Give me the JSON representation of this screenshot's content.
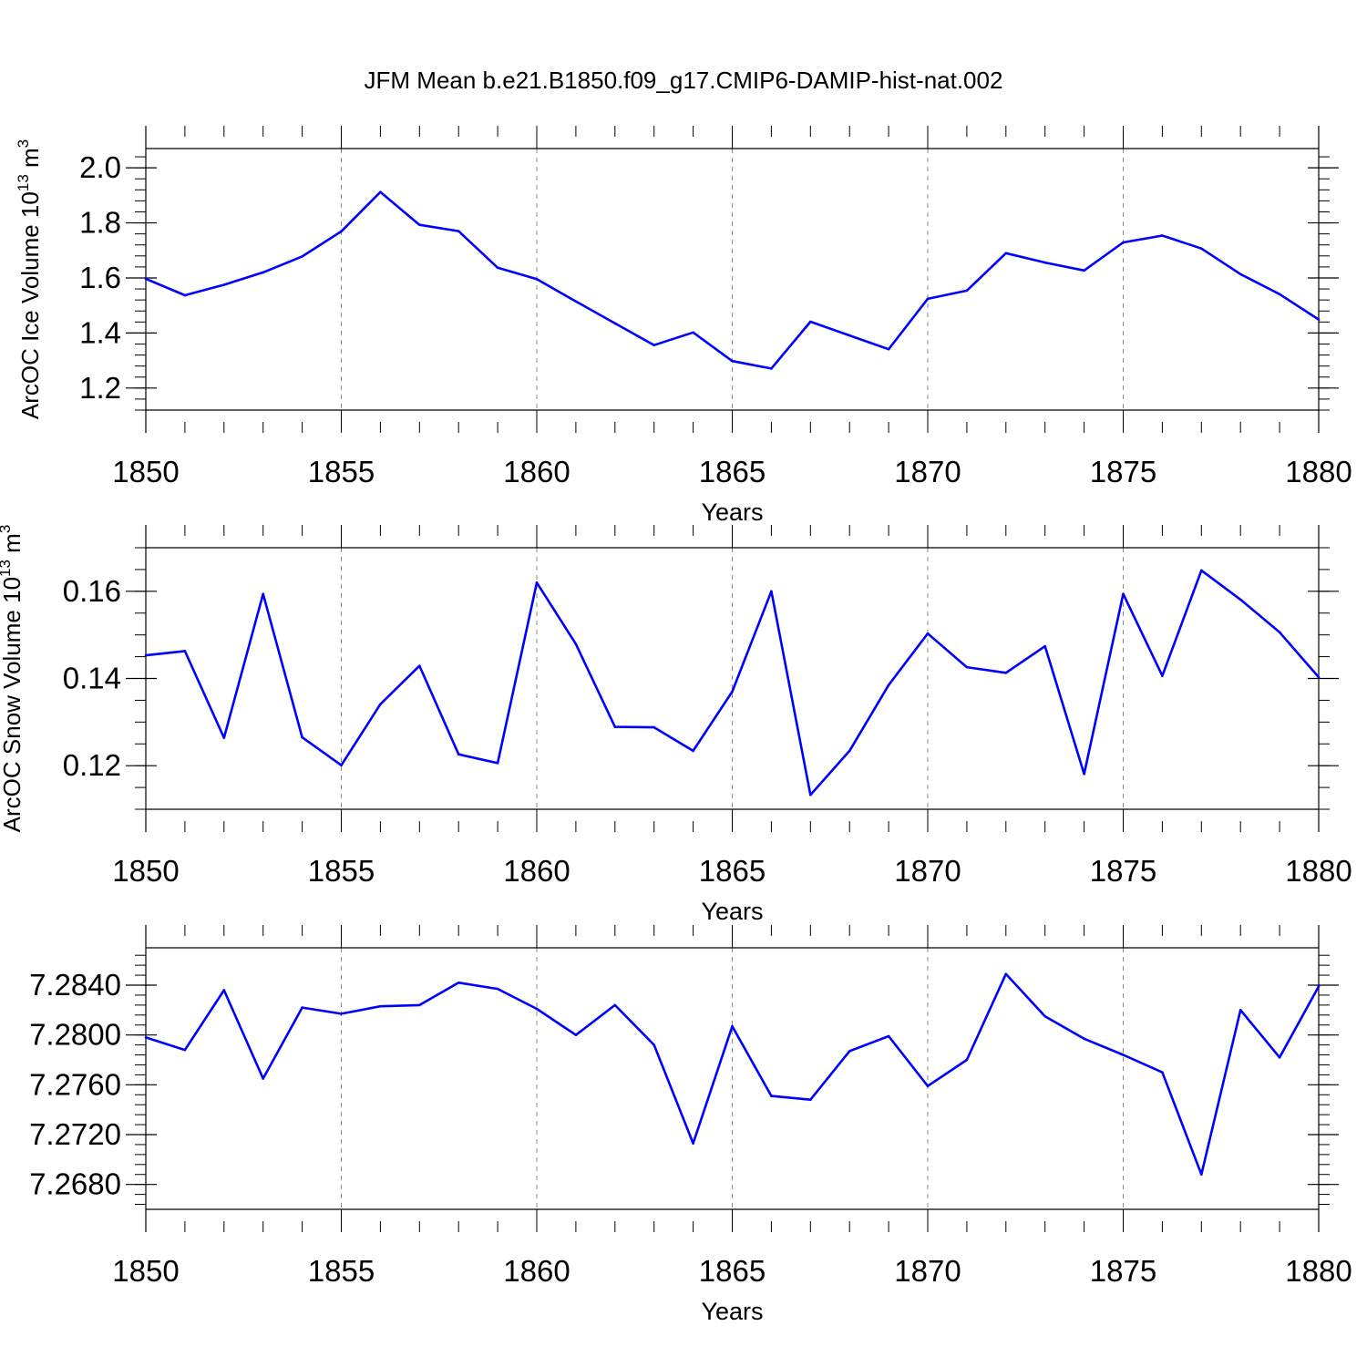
{
  "figure": {
    "title": "JFM Mean b.e21.B1850.f09_g17.CMIP6-DAMIP-hist-nat.002",
    "line_color": "#0000ff",
    "axis_color": "#000000",
    "grid_color": "#888888"
  },
  "chart_data": [
    {
      "type": "line",
      "title": "",
      "xlabel": "Years",
      "ylabel": {
        "main": "ArcOC Ice Volume 10",
        "exp": "13",
        "unit": " m",
        "unit_exp": "3"
      },
      "xlim": [
        1850,
        1880
      ],
      "ylim": [
        1.12,
        2.07
      ],
      "x_major_ticks": [
        1850,
        1855,
        1860,
        1865,
        1870,
        1875,
        1880
      ],
      "x_tick_labels": [
        "1850",
        "1855",
        "1860",
        "1865",
        "1870",
        "1875",
        "1880"
      ],
      "y_major_ticks": [
        1.2,
        1.4,
        1.6,
        1.8,
        2.0
      ],
      "y_tick_labels": [
        "1.2",
        "1.4",
        "1.6",
        "1.8",
        "2.0"
      ],
      "y_minor_step": 0.04,
      "grid": "vertical dashed at major x ticks",
      "x": [
        1850,
        1851,
        1852,
        1853,
        1854,
        1855,
        1856,
        1857,
        1858,
        1859,
        1860,
        1861,
        1862,
        1863,
        1864,
        1865,
        1866,
        1867,
        1868,
        1869,
        1870,
        1871,
        1872,
        1873,
        1874,
        1875,
        1876,
        1877,
        1878,
        1879,
        1880
      ],
      "values": [
        1.597,
        1.537,
        1.575,
        1.62,
        1.678,
        1.769,
        1.912,
        1.793,
        1.77,
        1.637,
        1.596,
        1.515,
        1.435,
        1.356,
        1.402,
        1.298,
        1.271,
        1.441,
        1.391,
        1.341,
        1.524,
        1.554,
        1.69,
        1.656,
        1.627,
        1.729,
        1.754,
        1.707,
        1.614,
        1.541,
        1.449
      ]
    },
    {
      "type": "line",
      "title": "",
      "xlabel": "Years",
      "ylabel": {
        "main": "ArcOC Snow Volume 10",
        "exp": "13",
        "unit": " m",
        "unit_exp": "3"
      },
      "xlim": [
        1850,
        1880
      ],
      "ylim": [
        0.11,
        0.17
      ],
      "x_major_ticks": [
        1850,
        1855,
        1860,
        1865,
        1870,
        1875,
        1880
      ],
      "x_tick_labels": [
        "1850",
        "1855",
        "1860",
        "1865",
        "1870",
        "1875",
        "1880"
      ],
      "y_major_ticks": [
        0.12,
        0.14,
        0.16
      ],
      "y_tick_labels": [
        "0.12",
        "0.14",
        "0.16"
      ],
      "y_minor_step": 0.005,
      "grid": "vertical dashed at major x ticks",
      "x": [
        1850,
        1851,
        1852,
        1853,
        1854,
        1855,
        1856,
        1857,
        1858,
        1859,
        1860,
        1861,
        1862,
        1863,
        1864,
        1865,
        1866,
        1867,
        1868,
        1869,
        1870,
        1871,
        1872,
        1873,
        1874,
        1875,
        1876,
        1877,
        1878,
        1879,
        1880
      ],
      "values": [
        0.1453,
        0.1463,
        0.1264,
        0.1594,
        0.1265,
        0.1201,
        0.1341,
        0.1429,
        0.1226,
        0.1206,
        0.162,
        0.1479,
        0.1289,
        0.1288,
        0.1234,
        0.137,
        0.16,
        0.1133,
        0.1234,
        0.1385,
        0.1503,
        0.1426,
        0.1413,
        0.1474,
        0.1181,
        0.1594,
        0.1406,
        0.1648,
        0.1581,
        0.1506,
        0.1403
      ]
    },
    {
      "type": "line",
      "title": "",
      "xlabel": "Years",
      "ylabel": null,
      "xlim": [
        1850,
        1880
      ],
      "ylim": [
        7.266,
        7.287
      ],
      "x_major_ticks": [
        1850,
        1855,
        1860,
        1865,
        1870,
        1875,
        1880
      ],
      "x_tick_labels": [
        "1850",
        "1855",
        "1860",
        "1865",
        "1870",
        "1875",
        "1880"
      ],
      "y_major_ticks": [
        7.268,
        7.272,
        7.276,
        7.28,
        7.284
      ],
      "y_tick_labels": [
        "7.2680",
        "7.2720",
        "7.2760",
        "7.2800",
        "7.2840"
      ],
      "y_minor_step": 0.0008,
      "grid": "vertical dashed at major x ticks",
      "x": [
        1850,
        1851,
        1852,
        1853,
        1854,
        1855,
        1856,
        1857,
        1858,
        1859,
        1860,
        1861,
        1862,
        1863,
        1864,
        1865,
        1866,
        1867,
        1868,
        1869,
        1870,
        1871,
        1872,
        1873,
        1874,
        1875,
        1876,
        1877,
        1878,
        1879,
        1880
      ],
      "values": [
        7.2798,
        7.2788,
        7.2836,
        7.2765,
        7.2822,
        7.2817,
        7.2823,
        7.2824,
        7.2842,
        7.2837,
        7.2821,
        7.28,
        7.2824,
        7.2792,
        7.2713,
        7.2807,
        7.2751,
        7.2748,
        7.2787,
        7.2799,
        7.2759,
        7.278,
        7.2849,
        7.2815,
        7.2797,
        7.2784,
        7.277,
        7.2688,
        7.282,
        7.2782,
        7.2839
      ]
    }
  ]
}
